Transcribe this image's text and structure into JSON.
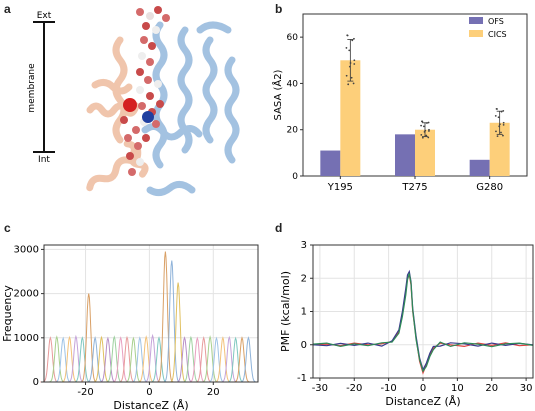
{
  "panels": {
    "a": {
      "label": "a",
      "scale_top": "Ext",
      "scale_bottom": "Int",
      "scale_caption": "membrane"
    },
    "b": {
      "label": "b"
    },
    "c": {
      "label": "c"
    },
    "d": {
      "label": "d"
    }
  },
  "chart_data": [
    {
      "id": "b",
      "type": "bar",
      "ylabel": "SASA (Å2)",
      "xlabel": "",
      "ylim": [
        0,
        70
      ],
      "yticks": [
        0,
        20,
        40,
        60
      ],
      "categories": [
        "Y195",
        "T275",
        "G280"
      ],
      "legend_position": "top-right",
      "series": [
        {
          "name": "OFS",
          "color": "#7570b3",
          "values": [
            11,
            18,
            7
          ],
          "errors": [
            0,
            0,
            0
          ]
        },
        {
          "name": "CICS",
          "color": "#fdcf7a",
          "values": [
            50,
            20,
            23
          ],
          "errors": [
            9,
            3,
            5
          ]
        }
      ]
    },
    {
      "id": "c",
      "type": "line",
      "xlabel": "DistanceZ (Å)",
      "ylabel": "Frequency",
      "xlim": [
        -33,
        34
      ],
      "ylim": [
        0,
        3100
      ],
      "xticks": [
        -20,
        0,
        20
      ],
      "yticks": [
        0,
        1000,
        2000,
        3000
      ],
      "grid": true,
      "series_description": "histogram windows",
      "window_centers": [
        -31,
        -29,
        -27,
        -25,
        -23,
        -21,
        -19,
        -17,
        -15,
        -13,
        -11,
        -9,
        -7,
        -5,
        -3,
        -1,
        1,
        3,
        5,
        7,
        9,
        11,
        13,
        15,
        17,
        19,
        21,
        23,
        25,
        27,
        29,
        31
      ],
      "window_peaks": [
        1000,
        1020,
        990,
        1010,
        1030,
        1000,
        2000,
        1000,
        1010,
        990,
        1020,
        1000,
        1010,
        990,
        1000,
        1020,
        1050,
        1000,
        2950,
        2750,
        2250,
        1000,
        1010,
        990,
        1000,
        1020,
        990,
        1000,
        1010,
        990,
        1000,
        1000
      ],
      "palette": [
        "#e89b9b",
        "#a8d08d",
        "#9ec3e6",
        "#f3c27a",
        "#c5a3d9",
        "#7fc8c0",
        "#d9a066",
        "#8fb3d9",
        "#e0c060",
        "#b78fc7",
        "#9fd1a0",
        "#e8a0c0"
      ]
    },
    {
      "id": "d",
      "type": "line",
      "xlabel": "DistanceZ (Å)",
      "ylabel": "PMF (kcal/mol)",
      "xlim": [
        -32,
        32
      ],
      "ylim": [
        -1,
        3
      ],
      "xticks": [
        -30,
        -20,
        -10,
        0,
        10,
        20,
        30
      ],
      "yticks": [
        -1,
        0,
        1,
        2,
        3
      ],
      "grid": true,
      "x": [
        -32,
        -28,
        -24,
        -20,
        -16,
        -12,
        -9,
        -7,
        -6,
        -5,
        -4.5,
        -4,
        -3.5,
        -3,
        -2,
        -1,
        0,
        1,
        2,
        3,
        5,
        8,
        12,
        16,
        20,
        24,
        28,
        32
      ],
      "series": [
        {
          "color": "#e04040",
          "values": [
            0,
            0.02,
            -0.03,
            0.05,
            0,
            0.03,
            0.1,
            0.4,
            0.9,
            1.6,
            2.0,
            2.1,
            1.8,
            1.0,
            0.2,
            -0.5,
            -0.85,
            -0.6,
            -0.3,
            -0.1,
            0.05,
            0,
            -0.05,
            0.05,
            -0.02,
            0.06,
            -0.03,
            0
          ]
        },
        {
          "color": "#3a3a8c",
          "values": [
            0,
            -0.03,
            0.04,
            -0.02,
            0.05,
            -0.04,
            0.12,
            0.45,
            1.0,
            1.7,
            2.1,
            2.2,
            1.9,
            1.1,
            0.25,
            -0.4,
            -0.75,
            -0.55,
            -0.25,
            -0.05,
            -0.04,
            0.06,
            0.03,
            -0.04,
            0.05,
            -0.02,
            0.04,
            0
          ]
        },
        {
          "color": "#2e8b57",
          "values": [
            0.02,
            0.05,
            -0.05,
            0.03,
            -0.03,
            0.06,
            0.08,
            0.35,
            0.85,
            1.5,
            1.95,
            2.15,
            1.85,
            1.05,
            0.15,
            -0.45,
            -0.8,
            -0.65,
            -0.35,
            -0.15,
            0.08,
            -0.05,
            0.06,
            0.02,
            -0.06,
            0.03,
            0.05,
            -0.02
          ]
        }
      ]
    }
  ]
}
